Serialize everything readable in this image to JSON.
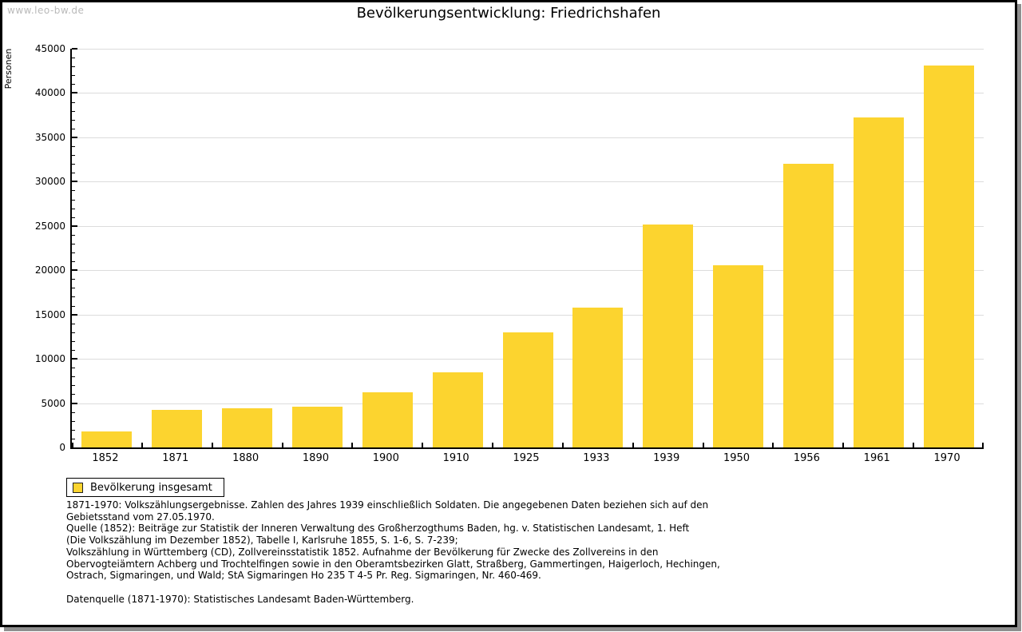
{
  "watermark": "www.leo-bw.de",
  "chart_data": {
    "type": "bar",
    "title": "Bevölkerungsentwicklung: Friedrichshafen",
    "xlabel": "",
    "ylabel": "Personen",
    "categories": [
      "1852",
      "1871",
      "1880",
      "1890",
      "1900",
      "1910",
      "1925",
      "1933",
      "1939",
      "1950",
      "1956",
      "1961",
      "1970"
    ],
    "values": [
      1800,
      4200,
      4400,
      4600,
      6200,
      8450,
      12950,
      15800,
      25150,
      20550,
      32050,
      37200,
      43100
    ],
    "ylim": [
      0,
      45000
    ],
    "y_major_step": 5000,
    "y_minor_step": 1000,
    "grid": "horizontal-major",
    "legend": {
      "label": "Bevölkerung insgesamt",
      "position": "bottom-left"
    },
    "colors": {
      "bar": "#FCD42F",
      "gridline": "#DCDCDC",
      "axis": "#000000"
    }
  },
  "notes": {
    "block1": [
      "1871-1970: Volkszählungsergebnisse. Zahlen des Jahres 1939 einschließlich Soldaten. Die angegebenen Daten beziehen sich auf den",
      "Gebietsstand vom 27.05.1970.",
      "Quelle (1852): Beiträge zur Statistik der Inneren Verwaltung des Großherzogthums Baden, hg. v. Statistischen Landesamt, 1. Heft",
      "(Die Volkszählung im Dezember 1852), Tabelle I, Karlsruhe 1855, S. 1-6, S. 7-239;",
      "Volkszählung in Württemberg (CD), Zollvereinsstatistik 1852. Aufnahme der Bevölkerung für Zwecke des Zollvereins in den",
      "Obervogteiämtern Achberg und Trochtelfingen sowie in den Oberamtsbezirken Glatt, Straßberg, Gammertingen, Haigerloch, Hechingen,",
      "Ostrach, Sigmaringen, und Wald; StA Sigmaringen Ho 235 T 4-5 Pr. Reg. Sigmaringen, Nr. 460-469."
    ],
    "block2": [
      "Datenquelle (1871-1970): Statistisches Landesamt Baden-Württemberg."
    ]
  }
}
